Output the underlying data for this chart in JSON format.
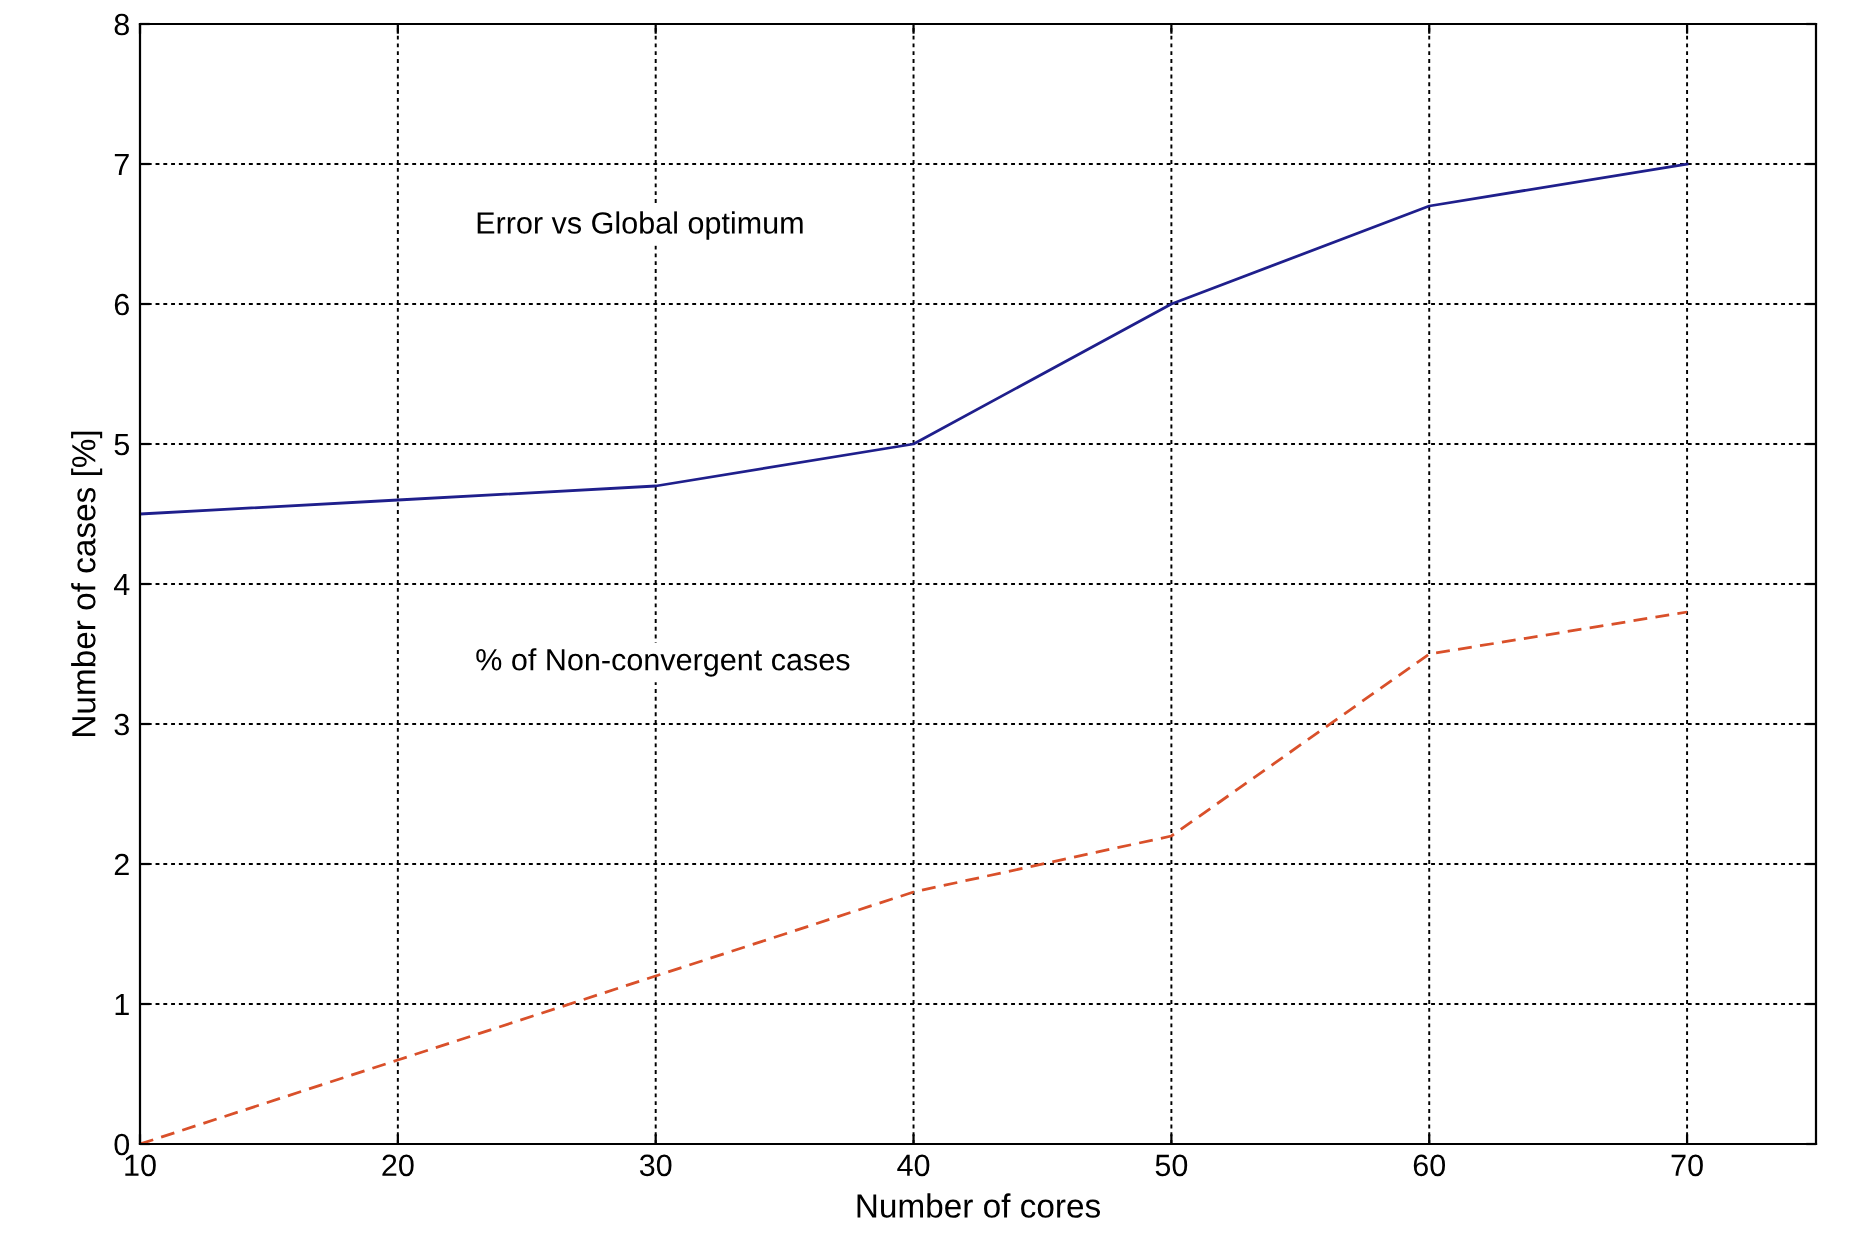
{
  "chart_data": {
    "type": "line",
    "xlabel": "Number of cores",
    "ylabel": "Number of cases [%]",
    "x": [
      10,
      20,
      30,
      40,
      50,
      60,
      70
    ],
    "series": [
      {
        "color": "#1f1f8c",
        "values": [
          4.5,
          4.6,
          4.7,
          5.0,
          6.0,
          6.7,
          7.0
        ],
        "line_style": "solid"
      },
      {
        "color": "#d9502a",
        "values": [
          0,
          0.6,
          1.2,
          1.8,
          2.2,
          3.5,
          3.8
        ],
        "line_style": "dashed"
      }
    ],
    "annotations": [
      "Error vs Global optimum",
      "% of Non-convergent cases"
    ],
    "xlim": [
      10,
      75
    ],
    "xticks": [
      10,
      20,
      30,
      40,
      50,
      60,
      70
    ],
    "ylim": [
      0,
      8
    ],
    "yticks": [
      0,
      1,
      2,
      3,
      4,
      5,
      6,
      7,
      8
    ],
    "grid": true,
    "marker": "none"
  }
}
